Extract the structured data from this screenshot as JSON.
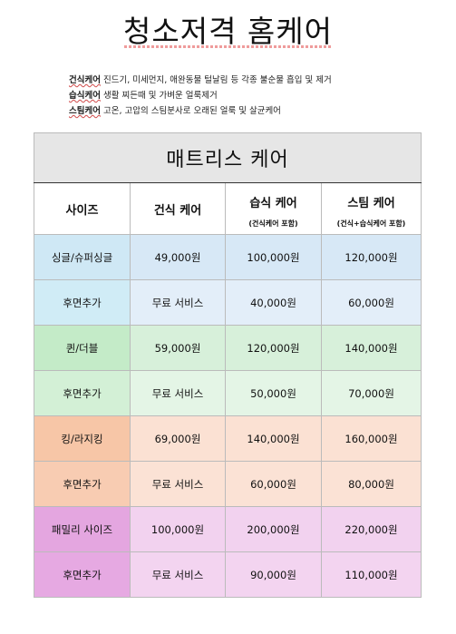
{
  "title": "청소저격 홈케어",
  "descriptions": [
    {
      "term": "건식케어",
      "text": " 진드기, 미세먼지, 애완동물 털날림 등 각종 불순물 흡입 및 제거"
    },
    {
      "term": "습식케어",
      "text": " 생활 찌든때 및 가벼운 얼룩제거"
    },
    {
      "term": "스팀케어",
      "text": " 고온, 고압의 스팀분사로 오래된 얼룩 및 살균케어"
    }
  ],
  "table": {
    "caption": "매트리스 케어",
    "headers": {
      "size": "사이즈",
      "dry": "건식 케어",
      "wet": "습식 케어",
      "wet_sub": "(건식케어 포함)",
      "steam": "스팀 케어",
      "steam_sub": "(건식+습식케어 포함)"
    },
    "rows": [
      {
        "size": "싱글/슈퍼싱글",
        "dry": "49,000원",
        "wet": "100,000원",
        "steam": "120,000원"
      },
      {
        "size": "후면추가",
        "dry": "무료 서비스",
        "wet": "40,000원",
        "steam": "60,000원"
      },
      {
        "size": "퀸/더블",
        "dry": "59,000원",
        "wet": "120,000원",
        "steam": "140,000원"
      },
      {
        "size": "후면추가",
        "dry": "무료 서비스",
        "wet": "50,000원",
        "steam": "70,000원"
      },
      {
        "size": "킹/라지킹",
        "dry": "69,000원",
        "wet": "140,000원",
        "steam": "160,000원"
      },
      {
        "size": "후면추가",
        "dry": "무료 서비스",
        "wet": "60,000원",
        "steam": "80,000원"
      },
      {
        "size": "패밀리 사이즈",
        "dry": "100,000원",
        "wet": "200,000원",
        "steam": "220,000원"
      },
      {
        "size": "후면추가",
        "dry": "무료 서비스",
        "wet": "90,000원",
        "steam": "110,000원"
      }
    ]
  }
}
